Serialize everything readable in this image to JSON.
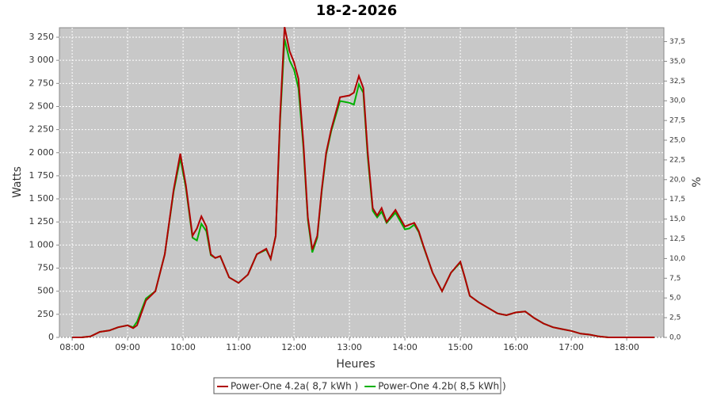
{
  "chart_data": {
    "type": "line",
    "title": "18-2-2026",
    "x_label": "Heures",
    "y_label": "Watts",
    "y2_label": "%",
    "x": [
      8.0,
      8.17,
      8.33,
      8.5,
      8.67,
      8.83,
      9.0,
      9.1,
      9.17,
      9.33,
      9.5,
      9.67,
      9.83,
      9.95,
      10.05,
      10.17,
      10.25,
      10.33,
      10.42,
      10.5,
      10.58,
      10.67,
      10.83,
      11.0,
      11.17,
      11.33,
      11.5,
      11.58,
      11.67,
      11.75,
      11.83,
      11.92,
      12.0,
      12.08,
      12.17,
      12.25,
      12.33,
      12.42,
      12.5,
      12.58,
      12.67,
      12.83,
      13.0,
      13.08,
      13.17,
      13.25,
      13.33,
      13.42,
      13.5,
      13.58,
      13.67,
      13.83,
      14.0,
      14.08,
      14.17,
      14.25,
      14.33,
      14.5,
      14.67,
      14.83,
      15.0,
      15.08,
      15.17,
      15.33,
      15.5,
      15.67,
      15.83,
      16.0,
      16.17,
      16.33,
      16.5,
      16.67,
      16.83,
      17.0,
      17.17,
      17.33,
      17.5,
      17.67,
      17.83,
      18.0,
      18.25,
      18.5
    ],
    "series": [
      {
        "name": "Power-One 4.2a( 8,7 kWh )",
        "color": "#b00000",
        "values": [
          0,
          0,
          10,
          60,
          75,
          110,
          130,
          100,
          130,
          400,
          500,
          900,
          1600,
          1990,
          1650,
          1100,
          1180,
          1310,
          1200,
          900,
          860,
          880,
          650,
          590,
          680,
          900,
          960,
          850,
          1100,
          2400,
          3360,
          3100,
          2980,
          2800,
          2100,
          1300,
          950,
          1100,
          1600,
          2000,
          2250,
          2600,
          2620,
          2650,
          2830,
          2700,
          2000,
          1400,
          1320,
          1400,
          1250,
          1380,
          1200,
          1220,
          1240,
          1150,
          1000,
          700,
          500,
          700,
          820,
          650,
          450,
          380,
          320,
          260,
          240,
          270,
          280,
          210,
          150,
          110,
          90,
          70,
          40,
          30,
          10,
          0,
          0,
          0,
          0,
          0
        ]
      },
      {
        "name": "Power-One 4.2b( 8,5 kWh )",
        "color": "#00b000",
        "values": [
          0,
          0,
          10,
          60,
          75,
          110,
          130,
          110,
          170,
          420,
          500,
          900,
          1580,
          1940,
          1620,
          1080,
          1050,
          1230,
          1150,
          890,
          860,
          880,
          650,
          590,
          680,
          900,
          950,
          850,
          1100,
          2350,
          3230,
          3000,
          2900,
          2700,
          2050,
          1270,
          920,
          1080,
          1580,
          1980,
          2230,
          2560,
          2540,
          2520,
          2740,
          2650,
          1950,
          1370,
          1300,
          1360,
          1240,
          1350,
          1170,
          1180,
          1220,
          1140,
          990,
          700,
          500,
          700,
          810,
          650,
          450,
          380,
          320,
          260,
          240,
          270,
          280,
          210,
          150,
          110,
          90,
          70,
          40,
          30,
          10,
          0,
          0,
          0,
          0,
          0
        ]
      }
    ],
    "xlim": [
      7.77,
      18.67
    ],
    "xticks": [
      {
        "value": 8,
        "label": "08:00"
      },
      {
        "value": 9,
        "label": "09:00"
      },
      {
        "value": 10,
        "label": "10:00"
      },
      {
        "value": 11,
        "label": "11:00"
      },
      {
        "value": 12,
        "label": "12:00"
      },
      {
        "value": 13,
        "label": "13:00"
      },
      {
        "value": 14,
        "label": "14:00"
      },
      {
        "value": 15,
        "label": "15:00"
      },
      {
        "value": 16,
        "label": "16:00"
      },
      {
        "value": 17,
        "label": "17:00"
      },
      {
        "value": 18,
        "label": "18:00"
      }
    ],
    "ylim": [
      0,
      3353
    ],
    "yticks": [
      0,
      250,
      500,
      750,
      {
        "value": 1000,
        "label": "1 000"
      },
      {
        "value": 1250,
        "label": "1 250"
      },
      {
        "value": 1500,
        "label": "1 500"
      },
      {
        "value": 1750,
        "label": "1 750"
      },
      {
        "value": 2000,
        "label": "2 000"
      },
      {
        "value": 2250,
        "label": "2 250"
      },
      {
        "value": 2500,
        "label": "2 500"
      },
      {
        "value": 2750,
        "label": "2 750"
      },
      {
        "value": 3000,
        "label": "3 000"
      },
      {
        "value": 3250,
        "label": "3 250"
      }
    ],
    "y2lim": [
      0,
      39.26
    ],
    "y2ticks": [
      {
        "value": 0,
        "label": "0,0"
      },
      {
        "value": 2.5,
        "label": "2,5"
      },
      {
        "value": 5,
        "label": "5,0"
      },
      {
        "value": 7.5,
        "label": "7,5"
      },
      {
        "value": 10,
        "label": "10,0"
      },
      {
        "value": 12.5,
        "label": "12,5"
      },
      {
        "value": 15,
        "label": "15,0"
      },
      {
        "value": 17.5,
        "label": "17,5"
      },
      {
        "value": 20,
        "label": "20,0"
      },
      {
        "value": 22.5,
        "label": "22,5"
      },
      {
        "value": 25,
        "label": "25,0"
      },
      {
        "value": 27.5,
        "label": "27,5"
      },
      {
        "value": 30,
        "label": "30,0"
      },
      {
        "value": 32.5,
        "label": "32,5"
      },
      {
        "value": 35,
        "label": "35,0"
      },
      {
        "value": 37.5,
        "label": "37,5"
      }
    ],
    "grid": true
  }
}
